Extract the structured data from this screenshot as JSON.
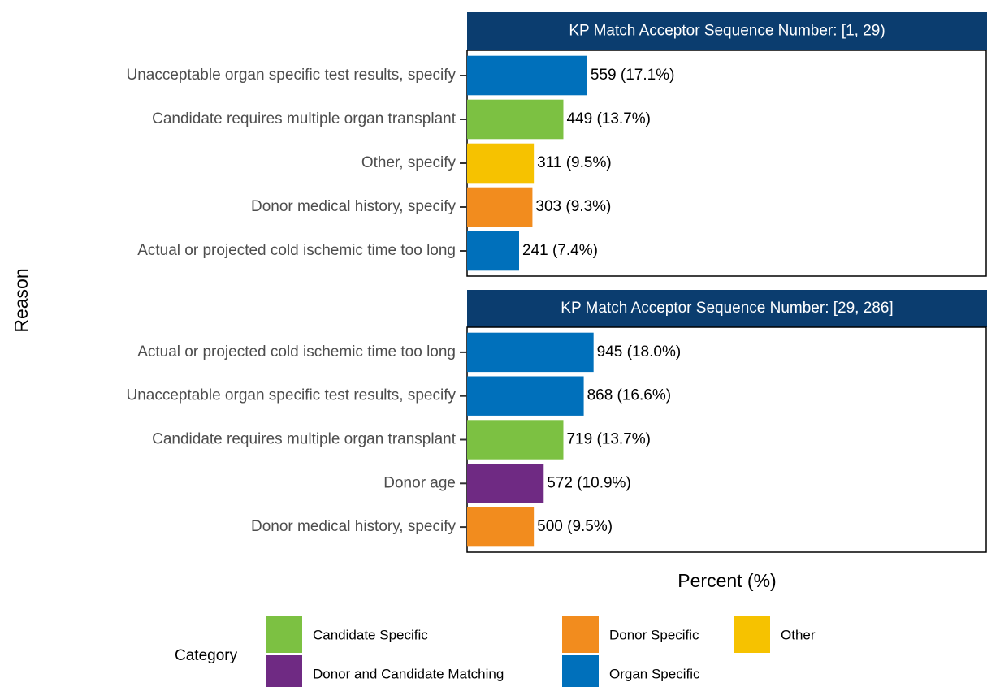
{
  "chart_data": [
    {
      "type": "bar",
      "orientation": "horizontal",
      "title": "KP Match Acceptor Sequence Number: [1, 29)",
      "categories": [
        "Unacceptable organ specific test results, specify",
        "Candidate requires multiple organ transplant",
        "Other, specify",
        "Donor medical history, specify",
        "Actual or projected cold ischemic time too long"
      ],
      "values": [
        17.1,
        13.7,
        9.5,
        9.3,
        7.4
      ],
      "value_labels": [
        "559 (17.1%)",
        "449 (13.7%)",
        "311 (9.5%)",
        "303 (9.3%)",
        "241 (7.4%)"
      ],
      "colors": [
        "#0070bb",
        "#7cc142",
        "#f6c200",
        "#f28c1e",
        "#0070bb"
      ],
      "xlim": [
        0,
        74
      ]
    },
    {
      "type": "bar",
      "orientation": "horizontal",
      "title": "KP Match Acceptor Sequence Number: [29, 286]",
      "categories": [
        "Actual or projected cold ischemic time too long",
        "Unacceptable organ specific test results, specify",
        "Candidate requires multiple organ transplant",
        "Donor age",
        "Donor medical history, specify"
      ],
      "values": [
        18.0,
        16.6,
        13.7,
        10.9,
        9.5
      ],
      "value_labels": [
        "945 (18.0%)",
        "868 (16.6%)",
        "719 (13.7%)",
        "572 (10.9%)",
        "500 (9.5%)"
      ],
      "colors": [
        "#0070bb",
        "#0070bb",
        "#7cc142",
        "#6f2a83",
        "#f28c1e"
      ],
      "xlim": [
        0,
        74
      ]
    }
  ],
  "x_label": "Percent (%)",
  "y_label": "Reason",
  "legend": {
    "title": "Category",
    "items": [
      {
        "name": "Candidate Specific",
        "color": "#7cc142"
      },
      {
        "name": "Donor and Candidate Matching",
        "color": "#6f2a83"
      },
      {
        "name": "Donor Specific",
        "color": "#f28c1e"
      },
      {
        "name": "Organ Specific",
        "color": "#0070bb"
      },
      {
        "name": "Other",
        "color": "#f6c200"
      }
    ]
  }
}
